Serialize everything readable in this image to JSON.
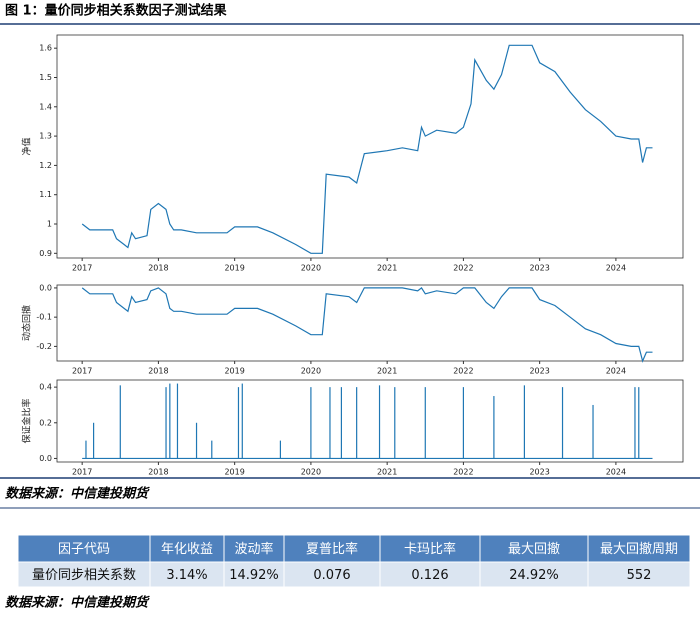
{
  "title": "图 1：量价同步相关系数因子测试结果",
  "chart_data": [
    {
      "type": "line",
      "ylabel": "净值",
      "color": "#1f77b4",
      "x": [
        2017.0,
        2017.1,
        2017.4,
        2017.45,
        2017.55,
        2017.6,
        2017.65,
        2017.7,
        2017.85,
        2017.9,
        2018.0,
        2018.1,
        2018.15,
        2018.2,
        2018.3,
        2018.5,
        2018.9,
        2019.0,
        2019.3,
        2019.5,
        2019.8,
        2020.0,
        2020.15,
        2020.2,
        2020.5,
        2020.6,
        2020.7,
        2021.0,
        2021.2,
        2021.4,
        2021.45,
        2021.5,
        2021.65,
        2021.9,
        2022.0,
        2022.1,
        2022.15,
        2022.3,
        2022.4,
        2022.5,
        2022.6,
        2022.9,
        2023.0,
        2023.2,
        2023.4,
        2023.6,
        2023.8,
        2024.0,
        2024.2,
        2024.3,
        2024.35,
        2024.4,
        2024.48
      ],
      "values": [
        1.0,
        0.98,
        0.98,
        0.95,
        0.93,
        0.92,
        0.97,
        0.95,
        0.96,
        1.05,
        1.07,
        1.05,
        1.0,
        0.98,
        0.98,
        0.97,
        0.97,
        0.99,
        0.99,
        0.97,
        0.93,
        0.9,
        0.9,
        1.17,
        1.16,
        1.14,
        1.24,
        1.25,
        1.26,
        1.25,
        1.33,
        1.3,
        1.32,
        1.31,
        1.33,
        1.41,
        1.56,
        1.49,
        1.46,
        1.51,
        1.61,
        1.61,
        1.55,
        1.52,
        1.45,
        1.39,
        1.35,
        1.3,
        1.29,
        1.29,
        1.21,
        1.26,
        1.26
      ],
      "xlim": [
        2016.67,
        2024.88
      ],
      "ylim": [
        0.884,
        1.645
      ],
      "xticks": [
        2017,
        2018,
        2019,
        2020,
        2021,
        2022,
        2023,
        2024
      ],
      "yticks": [
        0.9,
        1.0,
        1.1,
        1.2,
        1.3,
        1.4,
        1.5,
        1.6
      ]
    },
    {
      "type": "line",
      "ylabel": "动态回撤",
      "color": "#1f77b4",
      "x": [
        2017.0,
        2017.1,
        2017.4,
        2017.45,
        2017.55,
        2017.6,
        2017.65,
        2017.7,
        2017.85,
        2017.9,
        2018.0,
        2018.1,
        2018.15,
        2018.2,
        2018.3,
        2018.5,
        2018.9,
        2019.0,
        2019.3,
        2019.5,
        2019.8,
        2020.0,
        2020.15,
        2020.2,
        2020.5,
        2020.6,
        2020.7,
        2021.0,
        2021.2,
        2021.4,
        2021.45,
        2021.5,
        2021.65,
        2021.9,
        2022.0,
        2022.1,
        2022.15,
        2022.3,
        2022.4,
        2022.5,
        2022.6,
        2022.9,
        2023.0,
        2023.2,
        2023.4,
        2023.6,
        2023.8,
        2024.0,
        2024.2,
        2024.3,
        2024.35,
        2024.4,
        2024.48
      ],
      "values": [
        0,
        -0.02,
        -0.02,
        -0.05,
        -0.07,
        -0.08,
        -0.03,
        -0.05,
        -0.04,
        -0.01,
        0,
        -0.02,
        -0.07,
        -0.08,
        -0.08,
        -0.09,
        -0.09,
        -0.07,
        -0.07,
        -0.09,
        -0.13,
        -0.16,
        -0.16,
        -0.02,
        -0.03,
        -0.05,
        0,
        0,
        0,
        -0.01,
        0,
        -0.02,
        -0.01,
        -0.02,
        0,
        0,
        0,
        -0.05,
        -0.07,
        -0.03,
        0,
        0,
        -0.04,
        -0.06,
        -0.1,
        -0.14,
        -0.16,
        -0.19,
        -0.2,
        -0.2,
        -0.25,
        -0.22,
        -0.22
      ],
      "xlim": [
        2016.67,
        2024.88
      ],
      "ylim": [
        -0.25,
        0.01
      ],
      "xticks": [
        2017,
        2018,
        2019,
        2020,
        2021,
        2022,
        2023,
        2024
      ],
      "yticks": [
        {
          "value": 0,
          "label": "0.0"
        },
        -0.1,
        -0.2
      ]
    },
    {
      "type": "spike",
      "ylabel": "保证金比率",
      "color": "#1f77b4",
      "x": [
        2017.05,
        2017.15,
        2017.5,
        2018.1,
        2018.15,
        2018.25,
        2018.5,
        2018.7,
        2019.05,
        2019.1,
        2019.6,
        2020.0,
        2020.25,
        2020.4,
        2020.6,
        2020.9,
        2021.1,
        2021.5,
        2022.0,
        2022.4,
        2022.8,
        2023.3,
        2023.7,
        2024.25,
        2024.3
      ],
      "values": [
        0.1,
        0.2,
        0.41,
        0.4,
        0.42,
        0.42,
        0.2,
        0.1,
        0.4,
        0.42,
        0.1,
        0.4,
        0.4,
        0.4,
        0.4,
        0.41,
        0.4,
        0.4,
        0.4,
        0.35,
        0.41,
        0.4,
        0.3,
        0.4,
        0.4
      ],
      "xlim": [
        2016.67,
        2024.88
      ],
      "ylim": [
        -0.02,
        0.44
      ],
      "xticks": [
        2017,
        2018,
        2019,
        2020,
        2021,
        2022,
        2023,
        2024
      ],
      "yticks": [
        {
          "value": 0,
          "label": "0.0"
        },
        0.2,
        0.4
      ]
    }
  ],
  "source": "数据来源：中信建投期货",
  "table": {
    "header": [
      "因子代码",
      "年化收益",
      "波动率",
      "夏普比率",
      "卡玛比率",
      "最大回撤",
      "最大回撤周期"
    ],
    "rows": [
      [
        "量价同步相关系数",
        "3.14%",
        "14.92%",
        "0.076",
        "0.126",
        "24.92%",
        "552"
      ]
    ]
  },
  "table_source": "数据来源：中信建投期货"
}
